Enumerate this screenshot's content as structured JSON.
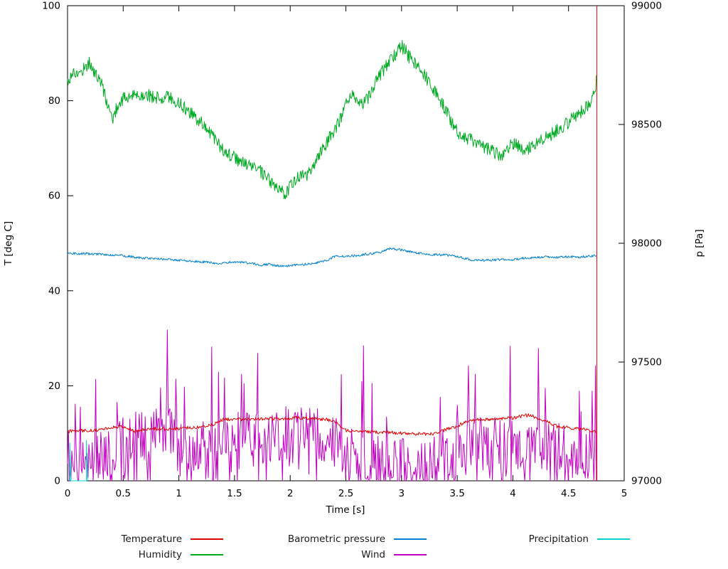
{
  "colors": {
    "background": "#ffffff",
    "axis": "#000000"
  },
  "chart_data": {
    "type": "line",
    "title": "",
    "xlabel": "Time [s]",
    "ylabel": "T [deg C]",
    "y2label": "p [Pa]",
    "xlim": [
      0,
      5
    ],
    "ylim": [
      0,
      100
    ],
    "y2lim": [
      97000,
      99000
    ],
    "grid": false,
    "legend_position": "bottom",
    "xticks": [
      0,
      0.5,
      1,
      1.5,
      2,
      2.5,
      3,
      3.5,
      4,
      4.5,
      5
    ],
    "xtick_labels": [
      "0",
      "0.5",
      "1",
      "1.5",
      "2",
      "2.5",
      "3",
      "3.5",
      "4",
      "4.5",
      "5"
    ],
    "yticks": [
      0,
      20,
      40,
      60,
      80,
      100
    ],
    "ytick_labels": [
      "0",
      "20",
      "40",
      "60",
      "80",
      "100"
    ],
    "y2ticks": [
      97000,
      97500,
      98000,
      98500,
      99000
    ],
    "y2tick_labels": [
      "97000",
      "97500",
      "98000",
      "98500",
      "99000"
    ],
    "legend_order": [
      "Temperature",
      "Barometric pressure",
      "Precipitation",
      "Humidity",
      "Wind"
    ],
    "series": [
      {
        "name": "Humidity",
        "color": "#00aa22",
        "axis": "y1",
        "style": "jitter",
        "noise": 1.4,
        "samples": 850,
        "trend": [
          [
            0,
            84
          ],
          [
            0.05,
            86
          ],
          [
            0.1,
            85.5
          ],
          [
            0.15,
            87
          ],
          [
            0.2,
            88
          ],
          [
            0.25,
            85.5
          ],
          [
            0.3,
            84
          ],
          [
            0.35,
            80
          ],
          [
            0.4,
            76
          ],
          [
            0.45,
            79
          ],
          [
            0.5,
            80.5
          ],
          [
            0.6,
            81
          ],
          [
            0.7,
            81.5
          ],
          [
            0.8,
            80.5
          ],
          [
            0.9,
            81
          ],
          [
            1.0,
            79.5
          ],
          [
            1.1,
            77.5
          ],
          [
            1.2,
            75.5
          ],
          [
            1.3,
            73
          ],
          [
            1.35,
            71
          ],
          [
            1.4,
            69.5
          ],
          [
            1.5,
            68
          ],
          [
            1.6,
            66.5
          ],
          [
            1.7,
            66
          ],
          [
            1.75,
            64.5
          ],
          [
            1.8,
            63.5
          ],
          [
            1.85,
            62
          ],
          [
            1.9,
            61
          ],
          [
            1.95,
            60.5
          ],
          [
            2.0,
            62
          ],
          [
            2.05,
            63.5
          ],
          [
            2.1,
            64.5
          ],
          [
            2.15,
            64
          ],
          [
            2.2,
            66
          ],
          [
            2.3,
            70
          ],
          [
            2.4,
            74
          ],
          [
            2.45,
            76
          ],
          [
            2.5,
            79
          ],
          [
            2.55,
            81
          ],
          [
            2.6,
            80
          ],
          [
            2.65,
            79.5
          ],
          [
            2.7,
            80.5
          ],
          [
            2.75,
            83
          ],
          [
            2.8,
            85
          ],
          [
            2.85,
            87
          ],
          [
            2.9,
            88.5
          ],
          [
            2.95,
            90
          ],
          [
            3.0,
            91.5
          ],
          [
            3.05,
            90
          ],
          [
            3.1,
            88
          ],
          [
            3.15,
            87
          ],
          [
            3.2,
            85.5
          ],
          [
            3.25,
            84
          ],
          [
            3.3,
            82
          ],
          [
            3.35,
            80
          ],
          [
            3.4,
            78
          ],
          [
            3.45,
            75.5
          ],
          [
            3.5,
            73.5
          ],
          [
            3.55,
            72.5
          ],
          [
            3.6,
            72
          ],
          [
            3.65,
            71.5
          ],
          [
            3.7,
            70.5
          ],
          [
            3.75,
            70
          ],
          [
            3.8,
            69.5
          ],
          [
            3.85,
            69
          ],
          [
            3.9,
            68.5
          ],
          [
            3.95,
            70
          ],
          [
            4.0,
            71
          ],
          [
            4.05,
            70.5
          ],
          [
            4.1,
            69.5
          ],
          [
            4.15,
            70
          ],
          [
            4.2,
            71
          ],
          [
            4.25,
            71.5
          ],
          [
            4.3,
            72.5
          ],
          [
            4.35,
            73
          ],
          [
            4.4,
            74
          ],
          [
            4.45,
            74.5
          ],
          [
            4.5,
            75.5
          ],
          [
            4.55,
            76.5
          ],
          [
            4.6,
            77.5
          ],
          [
            4.65,
            78.5
          ],
          [
            4.7,
            80
          ],
          [
            4.73,
            82
          ],
          [
            4.75,
            84
          ]
        ]
      },
      {
        "name": "Barometric pressure",
        "color": "#0080d0",
        "axis": "y2",
        "style": "jitter",
        "noise": 5,
        "samples": 850,
        "trend": [
          [
            0,
            97958
          ],
          [
            0.1,
            97957
          ],
          [
            0.2,
            97956
          ],
          [
            0.3,
            97953
          ],
          [
            0.4,
            97950
          ],
          [
            0.5,
            97948
          ],
          [
            0.6,
            97942
          ],
          [
            0.7,
            97937
          ],
          [
            0.8,
            97934
          ],
          [
            0.9,
            97933
          ],
          [
            1.0,
            97928
          ],
          [
            1.1,
            97925
          ],
          [
            1.2,
            97922
          ],
          [
            1.3,
            97918
          ],
          [
            1.35,
            97912
          ],
          [
            1.4,
            97918
          ],
          [
            1.5,
            97920
          ],
          [
            1.6,
            97918
          ],
          [
            1.7,
            97912
          ],
          [
            1.75,
            97908
          ],
          [
            1.8,
            97912
          ],
          [
            1.9,
            97905
          ],
          [
            1.95,
            97902
          ],
          [
            2.0,
            97906
          ],
          [
            2.1,
            97910
          ],
          [
            2.2,
            97914
          ],
          [
            2.3,
            97924
          ],
          [
            2.35,
            97932
          ],
          [
            2.4,
            97945
          ],
          [
            2.45,
            97948
          ],
          [
            2.5,
            97944
          ],
          [
            2.6,
            97948
          ],
          [
            2.7,
            97955
          ],
          [
            2.8,
            97962
          ],
          [
            2.85,
            97968
          ],
          [
            2.9,
            97978
          ],
          [
            2.95,
            97975
          ],
          [
            3.0,
            97972
          ],
          [
            3.1,
            97962
          ],
          [
            3.2,
            97955
          ],
          [
            3.3,
            97952
          ],
          [
            3.4,
            97950
          ],
          [
            3.5,
            97945
          ],
          [
            3.55,
            97938
          ],
          [
            3.6,
            97932
          ],
          [
            3.7,
            97928
          ],
          [
            3.8,
            97928
          ],
          [
            3.9,
            97932
          ],
          [
            4.0,
            97932
          ],
          [
            4.1,
            97938
          ],
          [
            4.2,
            97940
          ],
          [
            4.3,
            97942
          ],
          [
            4.4,
            97940
          ],
          [
            4.5,
            97944
          ],
          [
            4.6,
            97942
          ],
          [
            4.7,
            97946
          ],
          [
            4.75,
            97950
          ]
        ]
      },
      {
        "name": "Wind",
        "color": "#c000c0",
        "axis": "y1",
        "style": "spiky",
        "noise": 5.5,
        "spike_chance": 0.06,
        "spike_max": 19,
        "samples": 620,
        "trend": [
          [
            0,
            3
          ],
          [
            0.1,
            4
          ],
          [
            0.2,
            4
          ],
          [
            0.3,
            5
          ],
          [
            0.4,
            6
          ],
          [
            0.5,
            8
          ],
          [
            0.6,
            9
          ],
          [
            0.7,
            10
          ],
          [
            0.8,
            10
          ],
          [
            0.9,
            12
          ],
          [
            1.0,
            9
          ],
          [
            1.1,
            8
          ],
          [
            1.2,
            8
          ],
          [
            1.3,
            9
          ],
          [
            1.4,
            9
          ],
          [
            1.5,
            9
          ],
          [
            1.6,
            10
          ],
          [
            1.7,
            10
          ],
          [
            1.8,
            9
          ],
          [
            1.9,
            9
          ],
          [
            2.0,
            10
          ],
          [
            2.1,
            10
          ],
          [
            2.2,
            10
          ],
          [
            2.3,
            9
          ],
          [
            2.4,
            8
          ],
          [
            2.5,
            6
          ],
          [
            2.6,
            5
          ],
          [
            2.7,
            4
          ],
          [
            2.8,
            4
          ],
          [
            2.9,
            3
          ],
          [
            3.0,
            4
          ],
          [
            3.1,
            4
          ],
          [
            3.2,
            3
          ],
          [
            3.3,
            4
          ],
          [
            3.4,
            6
          ],
          [
            3.5,
            8
          ],
          [
            3.6,
            8
          ],
          [
            3.7,
            8
          ],
          [
            3.8,
            8
          ],
          [
            3.9,
            8
          ],
          [
            4.0,
            8
          ],
          [
            4.1,
            7
          ],
          [
            4.2,
            8
          ],
          [
            4.3,
            7
          ],
          [
            4.4,
            7
          ],
          [
            4.5,
            6
          ],
          [
            4.6,
            6
          ],
          [
            4.7,
            5
          ],
          [
            4.75,
            5
          ]
        ]
      },
      {
        "name": "Temperature",
        "color": "#dd0000",
        "axis": "y1",
        "style": "jitter",
        "noise": 0.35,
        "samples": 700,
        "end_spike": {
          "t": 4.755,
          "from": 0,
          "to": 100
        },
        "trend": [
          [
            0,
            10.4
          ],
          [
            0.1,
            10.6
          ],
          [
            0.2,
            10.5
          ],
          [
            0.3,
            10.8
          ],
          [
            0.4,
            11.2
          ],
          [
            0.5,
            11.5
          ],
          [
            0.55,
            11.0
          ],
          [
            0.6,
            10.4
          ],
          [
            0.7,
            10.8
          ],
          [
            0.8,
            11.0
          ],
          [
            0.9,
            10.9
          ],
          [
            1.0,
            11.0
          ],
          [
            1.1,
            11.2
          ],
          [
            1.2,
            11.3
          ],
          [
            1.3,
            11.8
          ],
          [
            1.4,
            12.9
          ],
          [
            1.5,
            13.0
          ],
          [
            1.6,
            12.9
          ],
          [
            1.7,
            13.0
          ],
          [
            1.8,
            13.1
          ],
          [
            1.9,
            13.0
          ],
          [
            2.0,
            13.2
          ],
          [
            2.1,
            13.3
          ],
          [
            2.2,
            13.1
          ],
          [
            2.3,
            13.0
          ],
          [
            2.4,
            12.6
          ],
          [
            2.45,
            11.5
          ],
          [
            2.5,
            10.6
          ],
          [
            2.6,
            10.4
          ],
          [
            2.7,
            10.3
          ],
          [
            2.8,
            10.2
          ],
          [
            2.9,
            10.2
          ],
          [
            3.0,
            10.0
          ],
          [
            3.1,
            9.9
          ],
          [
            3.2,
            9.8
          ],
          [
            3.3,
            10.0
          ],
          [
            3.4,
            10.8
          ],
          [
            3.5,
            11.5
          ],
          [
            3.6,
            12.7
          ],
          [
            3.7,
            12.9
          ],
          [
            3.8,
            13.0
          ],
          [
            3.9,
            13.1
          ],
          [
            4.0,
            13.2
          ],
          [
            4.1,
            13.7
          ],
          [
            4.15,
            13.8
          ],
          [
            4.2,
            13.4
          ],
          [
            4.3,
            12.6
          ],
          [
            4.35,
            12.0
          ],
          [
            4.4,
            11.4
          ],
          [
            4.5,
            11.2
          ],
          [
            4.6,
            10.9
          ],
          [
            4.7,
            10.6
          ],
          [
            4.75,
            10.2
          ]
        ]
      },
      {
        "name": "Precipitation",
        "color": "#00d0d0",
        "axis": "y1",
        "style": "path",
        "points": [
          [
            0.02,
            0
          ],
          [
            0.02,
            8
          ],
          [
            0.03,
            0
          ],
          [
            0.17,
            0
          ],
          [
            0.17,
            8.5
          ],
          [
            0.18,
            0
          ]
        ]
      }
    ]
  }
}
